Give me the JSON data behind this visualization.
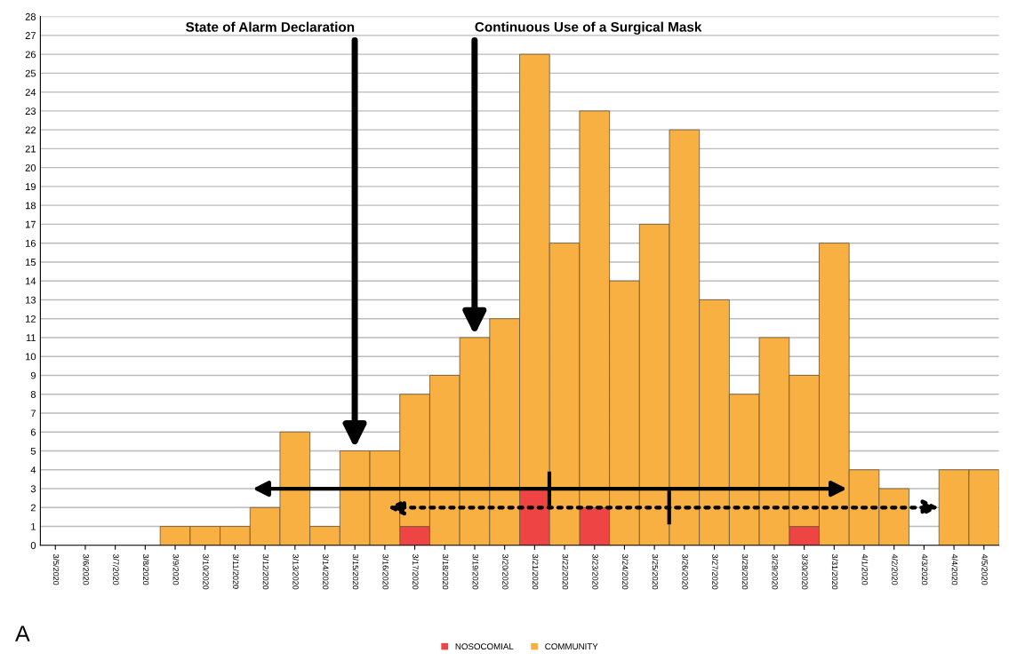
{
  "chart_data": {
    "type": "bar",
    "stacked": true,
    "categories": [
      "3/5/2020",
      "3/6/2020",
      "3/7/2020",
      "3/8/2020",
      "3/9/2020",
      "3/10/2020",
      "3/11/2020",
      "3/12/2020",
      "3/13/2020",
      "3/14/2020",
      "3/15/2020",
      "3/16/2020",
      "3/17/2020",
      "3/18/2020",
      "3/19/2020",
      "3/20/2020",
      "3/21/2020",
      "3/22/2020",
      "3/23/2020",
      "3/24/2020",
      "3/25/2020",
      "3/26/2020",
      "3/27/2020",
      "3/28/2020",
      "3/29/2020",
      "3/30/2020",
      "3/31/2020",
      "4/1/2020",
      "4/2/2020",
      "4/3/2020",
      "4/4/2020",
      "4/5/2020"
    ],
    "series": [
      {
        "name": "NOSOCOMIAL",
        "color": "#ef4444",
        "values": [
          0,
          0,
          0,
          0,
          0,
          0,
          0,
          0,
          0,
          0,
          0,
          0,
          1,
          0,
          0,
          0,
          3,
          0,
          2,
          0,
          0,
          0,
          0,
          0,
          0,
          1,
          0,
          0,
          0,
          0,
          0,
          0
        ]
      },
      {
        "name": "COMMUNITY",
        "color": "#f8b043",
        "values": [
          0,
          0,
          0,
          0,
          1,
          1,
          1,
          2,
          6,
          1,
          5,
          5,
          7,
          9,
          11,
          12,
          23,
          16,
          21,
          14,
          17,
          22,
          13,
          8,
          11,
          8,
          16,
          4,
          3,
          0,
          4,
          4
        ]
      }
    ],
    "ylim": [
      0,
      28
    ],
    "yticks": [
      0,
      1,
      2,
      3,
      4,
      5,
      6,
      7,
      8,
      9,
      10,
      11,
      12,
      13,
      14,
      15,
      16,
      17,
      18,
      19,
      20,
      21,
      22,
      23,
      24,
      25,
      26,
      27,
      28
    ],
    "grid": "y",
    "legend": "bottom",
    "annotations": [
      "State of Alarm Declaration",
      "Continuous Use of a Surgical Mask",
      "A"
    ]
  }
}
